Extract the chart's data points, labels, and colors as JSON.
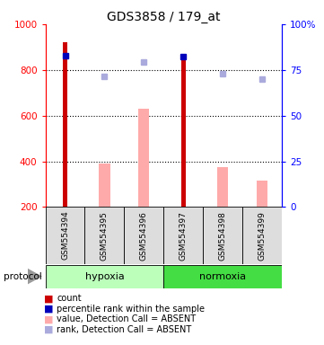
{
  "title": "GDS3858 / 179_at",
  "samples": [
    "GSM554394",
    "GSM554395",
    "GSM554396",
    "GSM554397",
    "GSM554398",
    "GSM554399"
  ],
  "count_values": [
    920,
    null,
    null,
    855,
    null,
    null
  ],
  "percentile_values": [
    860,
    null,
    null,
    858,
    null,
    null
  ],
  "absent_value_values": [
    null,
    390,
    630,
    null,
    375,
    315
  ],
  "absent_rank_values": [
    null,
    770,
    835,
    null,
    782,
    758
  ],
  "ylim_left": [
    200,
    1000
  ],
  "ylim_right": [
    0,
    100
  ],
  "grid_values": [
    800,
    600,
    400
  ],
  "bar_colors": {
    "count": "#cc0000",
    "percentile": "#0000bb",
    "absent_value": "#ffaaaa",
    "absent_rank": "#aaaadd"
  },
  "group_colors": {
    "hypoxia": "#bbffbb",
    "normoxia": "#44dd44"
  },
  "legend_items": [
    {
      "label": "count",
      "color": "#cc0000"
    },
    {
      "label": "percentile rank within the sample",
      "color": "#0000bb"
    },
    {
      "label": "value, Detection Call = ABSENT",
      "color": "#ffaaaa"
    },
    {
      "label": "rank, Detection Call = ABSENT",
      "color": "#aaaadd"
    }
  ]
}
